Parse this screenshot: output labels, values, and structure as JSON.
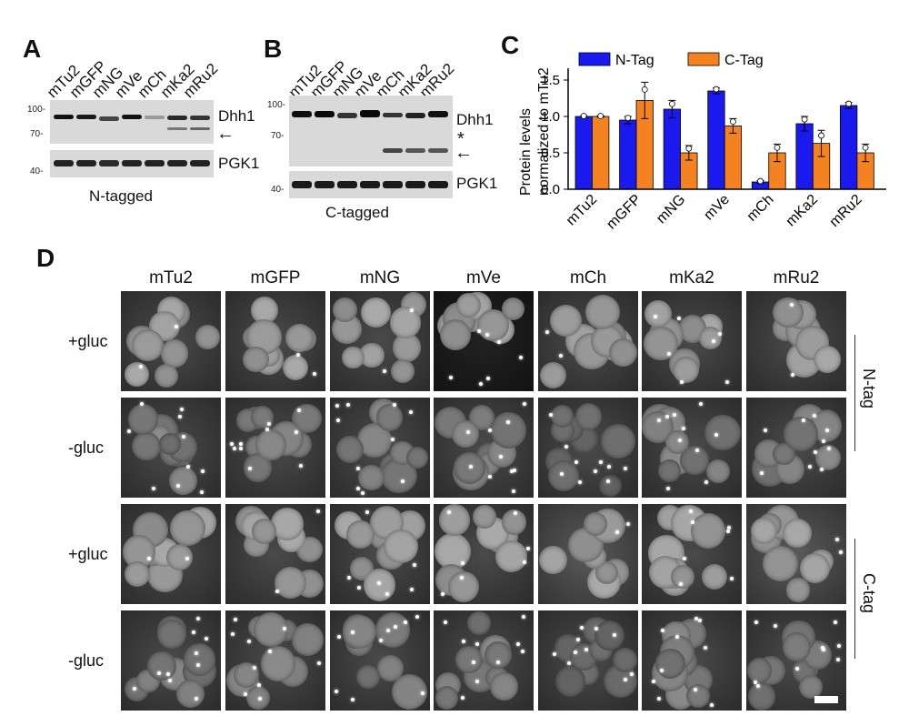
{
  "panel_a": {
    "letter": "A",
    "lanes": [
      "mTu2",
      "mGFP",
      "mNG",
      "mVe",
      "mCh",
      "mKa2",
      "mRu2"
    ],
    "mw_top": [
      "100-",
      "70-"
    ],
    "mw_bottom": "40-",
    "label_top": "Dhh1",
    "label_bottom": "PGK1",
    "arrow": "←",
    "caption": "N-tagged"
  },
  "panel_b": {
    "letter": "B",
    "lanes": [
      "mTu2",
      "mGFP",
      "mNG",
      "mVe",
      "mCh",
      "mKa2",
      "mRu2"
    ],
    "mw_top": [
      "100-",
      "70-"
    ],
    "mw_bottom": "40-",
    "label_top": "Dhh1",
    "label_bottom": "PGK1",
    "star": "*",
    "arrow": "←",
    "caption": "C-tagged"
  },
  "panel_c": {
    "letter": "C",
    "ylabel_line1": "Protein levels",
    "ylabel_line2": "normalized to mTu2",
    "y_ticks": [
      "0.0",
      "0.5",
      "1.0",
      "1.5"
    ]
  },
  "chart_data": {
    "type": "bar",
    "categories": [
      "mTu2",
      "mGFP",
      "mNG",
      "mVe",
      "mCh",
      "mKa2",
      "mRu2"
    ],
    "series": [
      {
        "name": "N-Tag",
        "color": "#1a1aee",
        "values": [
          1.0,
          0.95,
          1.1,
          1.35,
          0.1,
          0.9,
          1.15
        ],
        "errors": [
          0.01,
          0.05,
          0.12,
          0.04,
          0.02,
          0.1,
          0.04
        ]
      },
      {
        "name": "C-Tag",
        "color": "#f58220",
        "values": [
          1.0,
          1.22,
          0.5,
          0.87,
          0.5,
          0.63,
          0.5
        ],
        "errors": [
          0.01,
          0.25,
          0.1,
          0.1,
          0.12,
          0.18,
          0.12
        ]
      }
    ],
    "ylim": [
      0,
      1.6
    ],
    "legend_position": "top"
  },
  "panel_d": {
    "letter": "D",
    "columns": [
      "mTu2",
      "mGFP",
      "mNG",
      "mVe",
      "mCh",
      "mKa2",
      "mRu2"
    ],
    "rows": [
      "+gluc",
      "-gluc",
      "+gluc",
      "-gluc"
    ],
    "tag_top": "N-tag",
    "tag_bottom": "C-tag"
  }
}
